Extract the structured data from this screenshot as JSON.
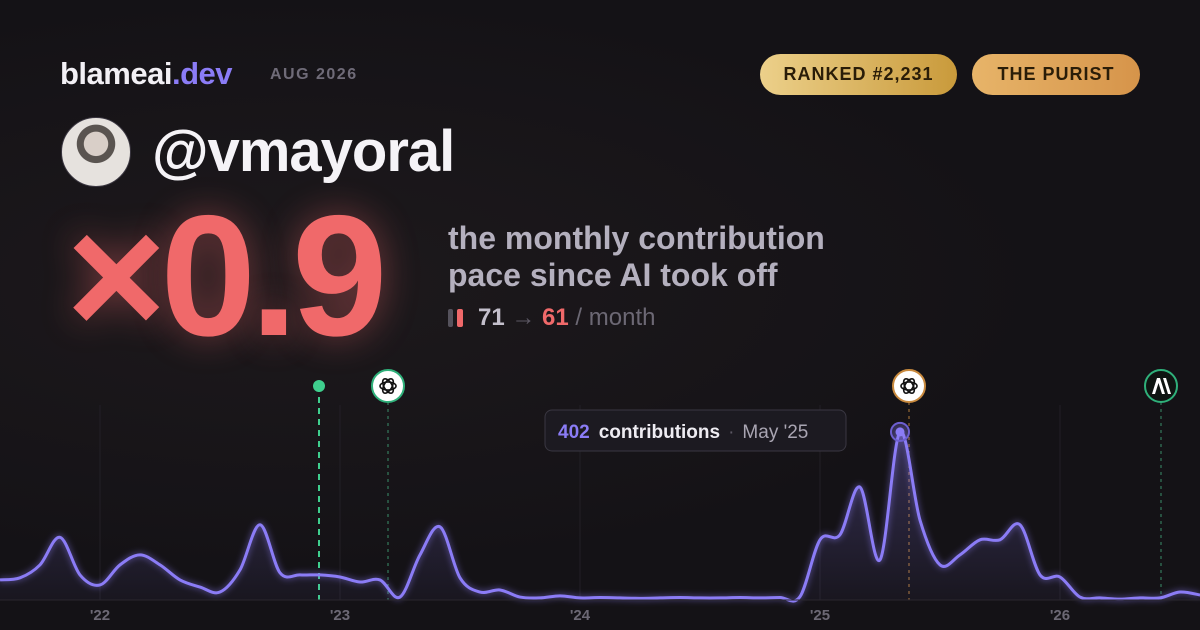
{
  "header": {
    "brand": "blameai",
    "brand_suffix": ".dev",
    "date": "AUG 2026",
    "badges": [
      "RANKED #2,231",
      "THE PURIST"
    ],
    "username": "@vmayoral",
    "multiplier": "×0.9",
    "description": [
      "the monthly contribution",
      "pace since AI took off"
    ],
    "pace_before": 71,
    "arrow": "→",
    "pace_after": 61,
    "pace_unit": "/ month"
  },
  "chart_data": {
    "type": "area",
    "categories": [
      null,
      null,
      null,
      null,
      null,
      "'22",
      null,
      null,
      null,
      null,
      null,
      null,
      null,
      null,
      null,
      null,
      null,
      "'23",
      null,
      null,
      null,
      null,
      null,
      null,
      null,
      null,
      null,
      null,
      null,
      "'24",
      null,
      null,
      null,
      null,
      null,
      null,
      null,
      null,
      null,
      null,
      null,
      "'25",
      null,
      null,
      null,
      null,
      null,
      null,
      null,
      null,
      null,
      null,
      null,
      "'26",
      null,
      null,
      null,
      null,
      null,
      null,
      null
    ],
    "series": [
      {
        "color": "#8b7cf6",
        "values": [
          48,
          53,
          84,
          150,
          60,
          36,
          84,
          108,
          84,
          48,
          31,
          19,
          72,
          180,
          65,
          60,
          60,
          55,
          43,
          48,
          7,
          108,
          175,
          53,
          19,
          24,
          7,
          5,
          10,
          5,
          6,
          5,
          4,
          5,
          6,
          5,
          5,
          6,
          5,
          6,
          8,
          144,
          156,
          270,
          96,
          402,
          191,
          84,
          108,
          144,
          144,
          180,
          60,
          55,
          7,
          5,
          2,
          5,
          5,
          19,
          12
        ]
      }
    ],
    "ylim": [
      0,
      420
    ],
    "tooltip": {
      "index": 45,
      "label": "contributions",
      "date": "May '25"
    }
  }
}
